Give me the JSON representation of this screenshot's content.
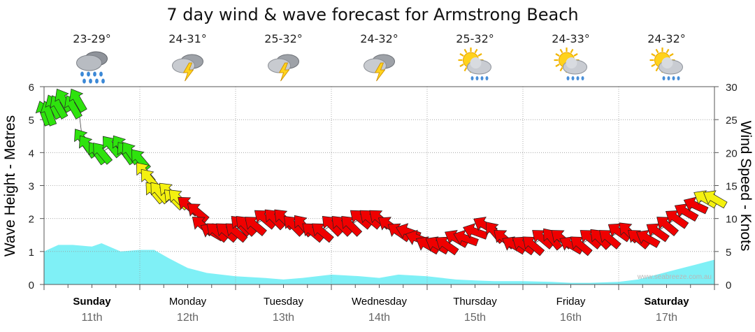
{
  "chart_data": {
    "type": "area",
    "title": "7 day wind & wave forecast for Armstrong Beach",
    "ylabel_left": "Wave Height - Metres",
    "ylabel_right": "Wind Speed - Knots",
    "ylim_left": [
      0,
      6
    ],
    "ylim_right": [
      0,
      30
    ],
    "yticks_left": [
      "0",
      "1",
      "2",
      "3",
      "4",
      "5",
      "6"
    ],
    "yticks_right": [
      "0",
      "5",
      "10",
      "15",
      "20",
      "25",
      "30"
    ],
    "watermark": "www.seabreeze.com.au",
    "grid": true,
    "days": [
      {
        "day": "Sunday",
        "date": "11th",
        "bold": true,
        "temp": "23-29°",
        "weather": "rain-cloud-icon"
      },
      {
        "day": "Monday",
        "date": "12th",
        "bold": false,
        "temp": "24-31°",
        "weather": "thunderstorm-icon"
      },
      {
        "day": "Tuesday",
        "date": "13th",
        "bold": false,
        "temp": "25-32°",
        "weather": "thunderstorm-icon"
      },
      {
        "day": "Wednesday",
        "date": "14th",
        "bold": false,
        "temp": "24-32°",
        "weather": "thunderstorm-icon"
      },
      {
        "day": "Thursday",
        "date": "15th",
        "bold": false,
        "temp": "25-32°",
        "weather": "sun-shower-icon"
      },
      {
        "day": "Friday",
        "date": "16th",
        "bold": false,
        "temp": "24-33°",
        "weather": "sun-shower-icon"
      },
      {
        "day": "Saturday",
        "date": "17th",
        "bold": true,
        "temp": "24-32°",
        "weather": "sun-shower-icon"
      }
    ],
    "wave_series": {
      "name": "Wave Height",
      "color": "#7ff0f6",
      "x_days": [
        0,
        0.15,
        0.3,
        0.5,
        0.6,
        0.8,
        1.0,
        1.15,
        1.3,
        1.5,
        1.7,
        2.0,
        2.3,
        2.5,
        2.7,
        3.0,
        3.3,
        3.5,
        3.7,
        4.0,
        4.3,
        4.5,
        4.7,
        5.0,
        5.3,
        5.5,
        5.7,
        6.0,
        6.2,
        6.4,
        6.6,
        6.8,
        7.0
      ],
      "values": [
        1.0,
        1.2,
        1.2,
        1.15,
        1.25,
        1.0,
        1.05,
        1.05,
        0.8,
        0.5,
        0.35,
        0.25,
        0.2,
        0.15,
        0.2,
        0.3,
        0.25,
        0.2,
        0.3,
        0.25,
        0.15,
        0.12,
        0.1,
        0.1,
        0.08,
        0.05,
        0.05,
        0.08,
        0.15,
        0.3,
        0.45,
        0.6,
        0.75
      ]
    },
    "wind_series": {
      "name": "Wind Speed",
      "colors": {
        "strong": "#2ee30d",
        "moderate": "#f4f10f",
        "light": "#f00000"
      },
      "x_days": [
        0.0,
        0.05,
        0.1,
        0.15,
        0.2,
        0.3,
        0.35,
        0.4,
        0.45,
        0.55,
        0.6,
        0.7,
        0.8,
        0.85,
        0.9,
        1.0,
        1.05,
        1.1,
        1.15,
        1.2,
        1.3,
        1.35,
        1.4,
        1.5,
        1.6,
        1.65,
        1.75,
        1.8,
        1.9,
        2.0,
        2.05,
        2.1,
        2.2,
        2.3,
        2.4,
        2.5,
        2.6,
        2.7,
        2.8,
        2.9,
        3.0,
        3.1,
        3.2,
        3.3,
        3.4,
        3.5,
        3.6,
        3.7,
        3.8,
        3.9,
        4.0,
        4.1,
        4.2,
        4.3,
        4.4,
        4.5,
        4.6,
        4.7,
        4.8,
        4.9,
        5.0,
        5.1,
        5.2,
        5.3,
        5.4,
        5.5,
        5.6,
        5.7,
        5.8,
        5.9,
        6.0,
        6.1,
        6.2,
        6.3,
        6.4,
        6.5,
        6.6,
        6.7,
        6.8,
        6.9,
        7.0
      ],
      "values": [
        26,
        26,
        27,
        27,
        28,
        27,
        28,
        22,
        21,
        20,
        20,
        21,
        21,
        20,
        20,
        19,
        17,
        16,
        14,
        14,
        14,
        13,
        13,
        12,
        11,
        9,
        8,
        8,
        8,
        8,
        9,
        9,
        9,
        10,
        10,
        10,
        9,
        9,
        8,
        8,
        9,
        9,
        9,
        10,
        10,
        10,
        9,
        8,
        8,
        7,
        6,
        6,
        6,
        7,
        7,
        8,
        9,
        8,
        7,
        6,
        6,
        6,
        7,
        7,
        7,
        6,
        6,
        7,
        7,
        7,
        8,
        8,
        7,
        7,
        8,
        9,
        10,
        11,
        12,
        13,
        13
      ],
      "directions_deg": [
        250,
        250,
        245,
        240,
        240,
        240,
        240,
        235,
        235,
        235,
        230,
        230,
        235,
        235,
        235,
        230,
        230,
        230,
        230,
        230,
        225,
        225,
        225,
        220,
        220,
        220,
        210,
        220,
        220,
        220,
        225,
        225,
        220,
        220,
        225,
        225,
        225,
        230,
        220,
        220,
        225,
        225,
        225,
        220,
        220,
        220,
        215,
        215,
        200,
        200,
        210,
        210,
        215,
        210,
        200,
        200,
        210,
        230,
        220,
        210,
        215,
        220,
        220,
        230,
        220,
        210,
        220,
        220,
        225,
        220,
        215,
        225,
        220,
        210,
        215,
        220,
        215,
        210,
        205,
        210,
        210
      ]
    }
  }
}
